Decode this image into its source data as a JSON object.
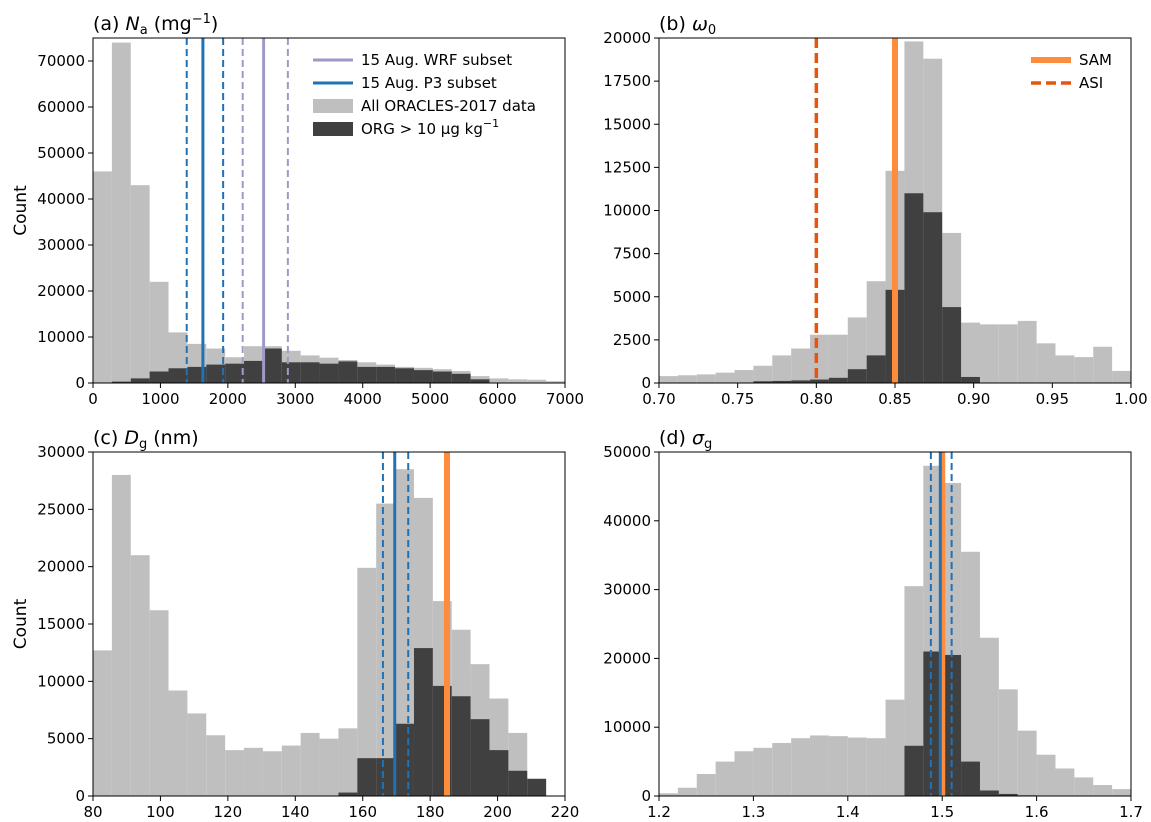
{
  "chart_data": [
    {
      "id": "a",
      "type": "bar",
      "title": "(a) N_a (mg⁻¹)",
      "title_main": "(a) ",
      "title_sym": "N",
      "title_sub": "a",
      "title_rest": " (mg",
      "title_sup": "−1",
      "title_close": ")",
      "ylabel": "Count",
      "xlim": [
        0,
        7000
      ],
      "ylim": [
        0,
        75000
      ],
      "xticks": [
        0,
        1000,
        2000,
        3000,
        4000,
        5000,
        6000,
        7000
      ],
      "yticks": [
        0,
        10000,
        20000,
        30000,
        40000,
        50000,
        60000,
        70000
      ],
      "bin_edges": [
        0,
        280,
        560,
        840,
        1120,
        1400,
        1680,
        1960,
        2240,
        2520,
        2800,
        3080,
        3360,
        3640,
        3920,
        4200,
        4480,
        4760,
        5040,
        5320,
        5600,
        5880,
        6160,
        6440,
        6720,
        7000
      ],
      "series": [
        {
          "name": "All ORACLES-2017 data",
          "color": "#bfbfbf",
          "values": [
            46000,
            74000,
            43000,
            22000,
            11000,
            8500,
            7500,
            5600,
            8000,
            8000,
            7000,
            6000,
            5500,
            5000,
            4500,
            4000,
            3500,
            3300,
            3000,
            2600,
            1500,
            1000,
            800,
            700,
            400
          ]
        },
        {
          "name": "ORG > 10 μg kg⁻¹",
          "color": "#404040",
          "values": [
            0,
            300,
            1000,
            2500,
            3200,
            3500,
            4000,
            4200,
            4800,
            7500,
            4500,
            4500,
            4200,
            4700,
            3500,
            3500,
            3200,
            2800,
            2500,
            2000,
            800,
            100,
            0,
            0,
            0
          ]
        }
      ],
      "vlines": [
        {
          "x": 2530,
          "color": "#9e9ac8",
          "style": "solid",
          "series": "15 Aug. WRF subset"
        },
        {
          "x": 2220,
          "color": "#9e9ac8",
          "style": "dashed"
        },
        {
          "x": 2890,
          "color": "#9e9ac8",
          "style": "dashed"
        },
        {
          "x": 1630,
          "color": "#2171b5",
          "style": "solid",
          "series": "15 Aug. P3 subset"
        },
        {
          "x": 1390,
          "color": "#2171b5",
          "style": "dashed"
        },
        {
          "x": 1930,
          "color": "#2171b5",
          "style": "dashed"
        }
      ],
      "legend": {
        "position": "top-right",
        "entries": [
          {
            "label": "15 Aug. WRF subset",
            "kind": "line",
            "color": "#9e9ac8"
          },
          {
            "label": "15 Aug. P3 subset",
            "kind": "line",
            "color": "#2171b5"
          },
          {
            "label": "All ORACLES-2017 data",
            "kind": "patch",
            "color": "#bfbfbf"
          },
          {
            "label": "ORG > 10 μg kg",
            "label_sup": "−1",
            "kind": "patch",
            "color": "#404040"
          }
        ]
      }
    },
    {
      "id": "b",
      "type": "bar",
      "title": "(b) ω0",
      "title_main": "(b) ",
      "title_sym": "ω",
      "title_sub": "0",
      "xlim": [
        0.7,
        1.0
      ],
      "ylim": [
        0,
        20000
      ],
      "xticks": [
        0.7,
        0.75,
        0.8,
        0.85,
        0.9,
        0.95,
        1.0
      ],
      "xtick_labels": [
        "0.70",
        "0.75",
        "0.80",
        "0.85",
        "0.90",
        "0.95",
        "1.00"
      ],
      "yticks": [
        0,
        2500,
        5000,
        7500,
        10000,
        12500,
        15000,
        17500,
        20000
      ],
      "bin_edges": [
        0.7,
        0.712,
        0.724,
        0.736,
        0.748,
        0.76,
        0.772,
        0.784,
        0.796,
        0.808,
        0.82,
        0.832,
        0.844,
        0.856,
        0.868,
        0.88,
        0.892,
        0.904,
        0.916,
        0.928,
        0.94,
        0.952,
        0.964,
        0.976,
        0.988,
        1.0
      ],
      "series": [
        {
          "name": "All ORACLES-2017 data",
          "color": "#bfbfbf",
          "values": [
            400,
            450,
            500,
            600,
            750,
            1000,
            1600,
            2000,
            2800,
            2800,
            3800,
            5900,
            12300,
            19800,
            18800,
            8700,
            3500,
            3400,
            3400,
            3600,
            2300,
            1600,
            1500,
            2100,
            700
          ]
        },
        {
          "name": "ORG > 10 μg kg⁻¹",
          "color": "#404040",
          "values": [
            0,
            0,
            0,
            0,
            0,
            100,
            120,
            150,
            200,
            300,
            800,
            1600,
            5400,
            11000,
            9900,
            4400,
            350,
            0,
            0,
            0,
            0,
            0,
            0,
            0,
            0
          ]
        }
      ],
      "vlines": [
        {
          "x": 0.85,
          "color": "#fd8d3c",
          "style": "solid-thick",
          "series": "SAM"
        },
        {
          "x": 0.8,
          "color": "#e6550d",
          "style": "dashed-thick",
          "series": "ASI"
        }
      ],
      "legend": {
        "position": "top-right",
        "entries": [
          {
            "label": "SAM",
            "kind": "line-thick",
            "color": "#fd8d3c"
          },
          {
            "label": "ASI",
            "kind": "dashed-thick",
            "color": "#e6550d"
          }
        ]
      }
    },
    {
      "id": "c",
      "type": "bar",
      "title": "(c) D_g (nm)",
      "title_main": "(c) ",
      "title_sym": "D",
      "title_sub": "g",
      "title_rest": " (nm)",
      "ylabel": "Count",
      "xlim": [
        80,
        220
      ],
      "ylim": [
        0,
        30000
      ],
      "xticks": [
        80,
        100,
        120,
        140,
        160,
        180,
        200,
        220
      ],
      "yticks": [
        0,
        5000,
        10000,
        15000,
        20000,
        25000,
        30000
      ],
      "bin_edges": [
        80,
        85.6,
        91.2,
        96.8,
        102.4,
        108,
        113.6,
        119.2,
        124.8,
        130.4,
        136,
        141.6,
        147.2,
        152.8,
        158.4,
        164,
        169.6,
        175.2,
        180.8,
        186.4,
        192,
        197.6,
        203.2,
        208.8,
        214.4,
        220
      ],
      "series": [
        {
          "name": "All ORACLES-2017 data",
          "color": "#bfbfbf",
          "values": [
            12700,
            28000,
            21000,
            16200,
            9200,
            7200,
            5300,
            4000,
            4200,
            3900,
            4400,
            5500,
            5000,
            5900,
            19900,
            25500,
            28500,
            26000,
            17000,
            14500,
            11500,
            8500,
            5500,
            1500,
            0
          ]
        },
        {
          "name": "ORG > 10 μg kg⁻¹",
          "color": "#404040",
          "values": [
            0,
            0,
            0,
            0,
            0,
            0,
            0,
            0,
            0,
            0,
            0,
            0,
            0,
            300,
            3300,
            3300,
            6300,
            12900,
            9600,
            8700,
            6700,
            4000,
            2200,
            1500,
            0
          ]
        }
      ],
      "vlines": [
        {
          "x": 185,
          "color": "#fd8d3c",
          "style": "solid-thick"
        },
        {
          "x": 169.5,
          "color": "#2171b5",
          "style": "solid"
        },
        {
          "x": 166,
          "color": "#2171b5",
          "style": "dashed"
        },
        {
          "x": 173.5,
          "color": "#2171b5",
          "style": "dashed"
        }
      ]
    },
    {
      "id": "d",
      "type": "bar",
      "title": "(d) σ_g",
      "title_main": "(d) ",
      "title_sym": "σ",
      "title_sub": "g",
      "xlim": [
        1.2,
        1.7
      ],
      "ylim": [
        0,
        50000
      ],
      "xticks": [
        1.2,
        1.3,
        1.4,
        1.5,
        1.6,
        1.7
      ],
      "xtick_labels": [
        "1.2",
        "1.3",
        "1.4",
        "1.5",
        "1.6",
        "1.7"
      ],
      "yticks": [
        0,
        10000,
        20000,
        30000,
        40000,
        50000
      ],
      "bin_edges": [
        1.2,
        1.22,
        1.24,
        1.26,
        1.28,
        1.3,
        1.32,
        1.34,
        1.36,
        1.38,
        1.4,
        1.42,
        1.44,
        1.46,
        1.48,
        1.5,
        1.52,
        1.54,
        1.56,
        1.58,
        1.6,
        1.62,
        1.64,
        1.66,
        1.68,
        1.7
      ],
      "series": [
        {
          "name": "All ORACLES-2017 data",
          "color": "#bfbfbf",
          "values": [
            400,
            1200,
            3200,
            5000,
            6500,
            7000,
            7700,
            8400,
            8800,
            8700,
            8500,
            8400,
            14000,
            30500,
            48000,
            45500,
            35500,
            23000,
            15500,
            9500,
            6000,
            4000,
            2700,
            1600,
            1000
          ]
        },
        {
          "name": "ORG > 10 μg kg⁻¹",
          "color": "#404040",
          "values": [
            0,
            0,
            0,
            0,
            0,
            0,
            0,
            0,
            0,
            0,
            0,
            0,
            0,
            7300,
            21000,
            20500,
            5000,
            800,
            300,
            100,
            0,
            0,
            0,
            0,
            0
          ]
        }
      ],
      "vlines": [
        {
          "x": 1.5,
          "color": "#fd8d3c",
          "style": "solid-thick"
        },
        {
          "x": 1.498,
          "color": "#2171b5",
          "style": "solid"
        },
        {
          "x": 1.488,
          "color": "#2171b5",
          "style": "dashed"
        },
        {
          "x": 1.51,
          "color": "#2171b5",
          "style": "dashed"
        }
      ]
    }
  ]
}
